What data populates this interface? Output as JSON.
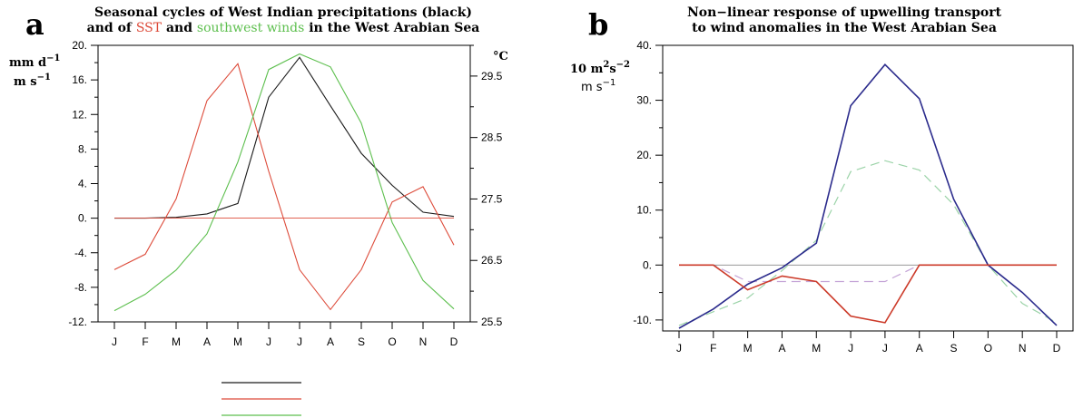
{
  "panel_a": {
    "letter": "a",
    "title_line1": "Seasonal cycles of West Indian precipitations (black)",
    "title_line2": {
      "p1": "and of ",
      "p2": "SST",
      "p3": " and ",
      "p4": "southwest winds",
      "p5": " in the West Arabian Sea"
    },
    "left_unit_1": "mm d",
    "left_unit_1_sup": "−1",
    "left_unit_2": "m s",
    "left_unit_2_sup": "−1",
    "right_unit": "°C"
  },
  "panel_b": {
    "letter": "b",
    "title_line1": "Non−linear response of upwelling transport",
    "title_line2": "to wind anomalies in the West Arabian Sea",
    "unit_1": "10 m",
    "unit_1_sup1": "2",
    "unit_1_mid": "s",
    "unit_1_sup2": "−2",
    "unit_2": "m s",
    "unit_2_sup": "−1"
  },
  "chart_data": [
    {
      "type": "line",
      "title": "Seasonal cycles of West Indian precipitations (black) and of SST and southwest winds in the West Arabian Sea",
      "categories": [
        "J",
        "F",
        "M",
        "A",
        "M",
        "J",
        "J",
        "A",
        "S",
        "O",
        "N",
        "D"
      ],
      "ylim": [
        -12,
        20
      ],
      "yticks": [
        "-12.",
        "-8.",
        "-4.",
        "0.",
        "4.",
        "8.",
        "12.",
        "16.",
        "20."
      ],
      "y2lim": [
        25.5,
        30
      ],
      "y2ticks": [
        "25.5",
        "26.5",
        "27.5",
        "28.5",
        "29.5"
      ],
      "series": [
        {
          "color": "#1a1a1a",
          "values": [
            0,
            0,
            0.1,
            0.5,
            1.7,
            14,
            18.6,
            13,
            7.5,
            3.8,
            0.7,
            0.2
          ]
        },
        {
          "color": "#dd4b3a",
          "axis": "right",
          "values": [
            26.35,
            26.6,
            27.5,
            29.1,
            29.7,
            27.95,
            26.35,
            25.7,
            26.35,
            27.45,
            27.7,
            26.75
          ]
        },
        {
          "color": "#5dbf4e",
          "values": [
            -10.7,
            -8.8,
            -6,
            -1.8,
            6.5,
            17.2,
            19,
            17.5,
            11,
            -0.5,
            -7.2,
            -10.5
          ]
        },
        {
          "color": "#dd4b3a",
          "style": "reference",
          "values": [
            0,
            0,
            0,
            0,
            0,
            0,
            0,
            0,
            0,
            0,
            0,
            0
          ]
        }
      ],
      "legend": [
        {
          "color": "#1a1a1a",
          "label": ""
        },
        {
          "color": "#dd4b3a",
          "label": ""
        },
        {
          "color": "#5dbf4e",
          "label": ""
        }
      ]
    },
    {
      "type": "line",
      "title": "Non−linear response of upwelling transport to wind anomalies in the West Arabian Sea",
      "categories": [
        "J",
        "F",
        "M",
        "A",
        "M",
        "J",
        "J",
        "A",
        "S",
        "O",
        "N",
        "D"
      ],
      "ylim": [
        -12,
        40
      ],
      "yticks": [
        "-10.",
        "0.",
        "10.",
        "20.",
        "30.",
        "40."
      ],
      "series": [
        {
          "color": "#2b2b8c",
          "values": [
            -11.5,
            -8,
            -3.5,
            -0.5,
            4,
            29,
            36.5,
            30.3,
            12,
            0,
            -5,
            -11
          ]
        },
        {
          "color": "#9bd3a8",
          "style": "dashed",
          "values": [
            -11,
            -8.5,
            -6,
            -1,
            4.5,
            17,
            19,
            17.3,
            11,
            0,
            -7,
            -10.5
          ]
        },
        {
          "color": "#c4a3d6",
          "style": "dashed",
          "values": [
            0,
            0,
            -3,
            -3,
            -3,
            -3,
            -3,
            0,
            0,
            0,
            0,
            0
          ]
        },
        {
          "color": "#cc3b2a",
          "values": [
            0,
            0,
            -4.5,
            -2,
            -3,
            -9.3,
            -10.5,
            0,
            0,
            0,
            0,
            0
          ]
        },
        {
          "color": "#888888",
          "style": "reference",
          "values": [
            0,
            0,
            0,
            0,
            0,
            0,
            0,
            0,
            0,
            0,
            0,
            0
          ]
        }
      ]
    }
  ]
}
